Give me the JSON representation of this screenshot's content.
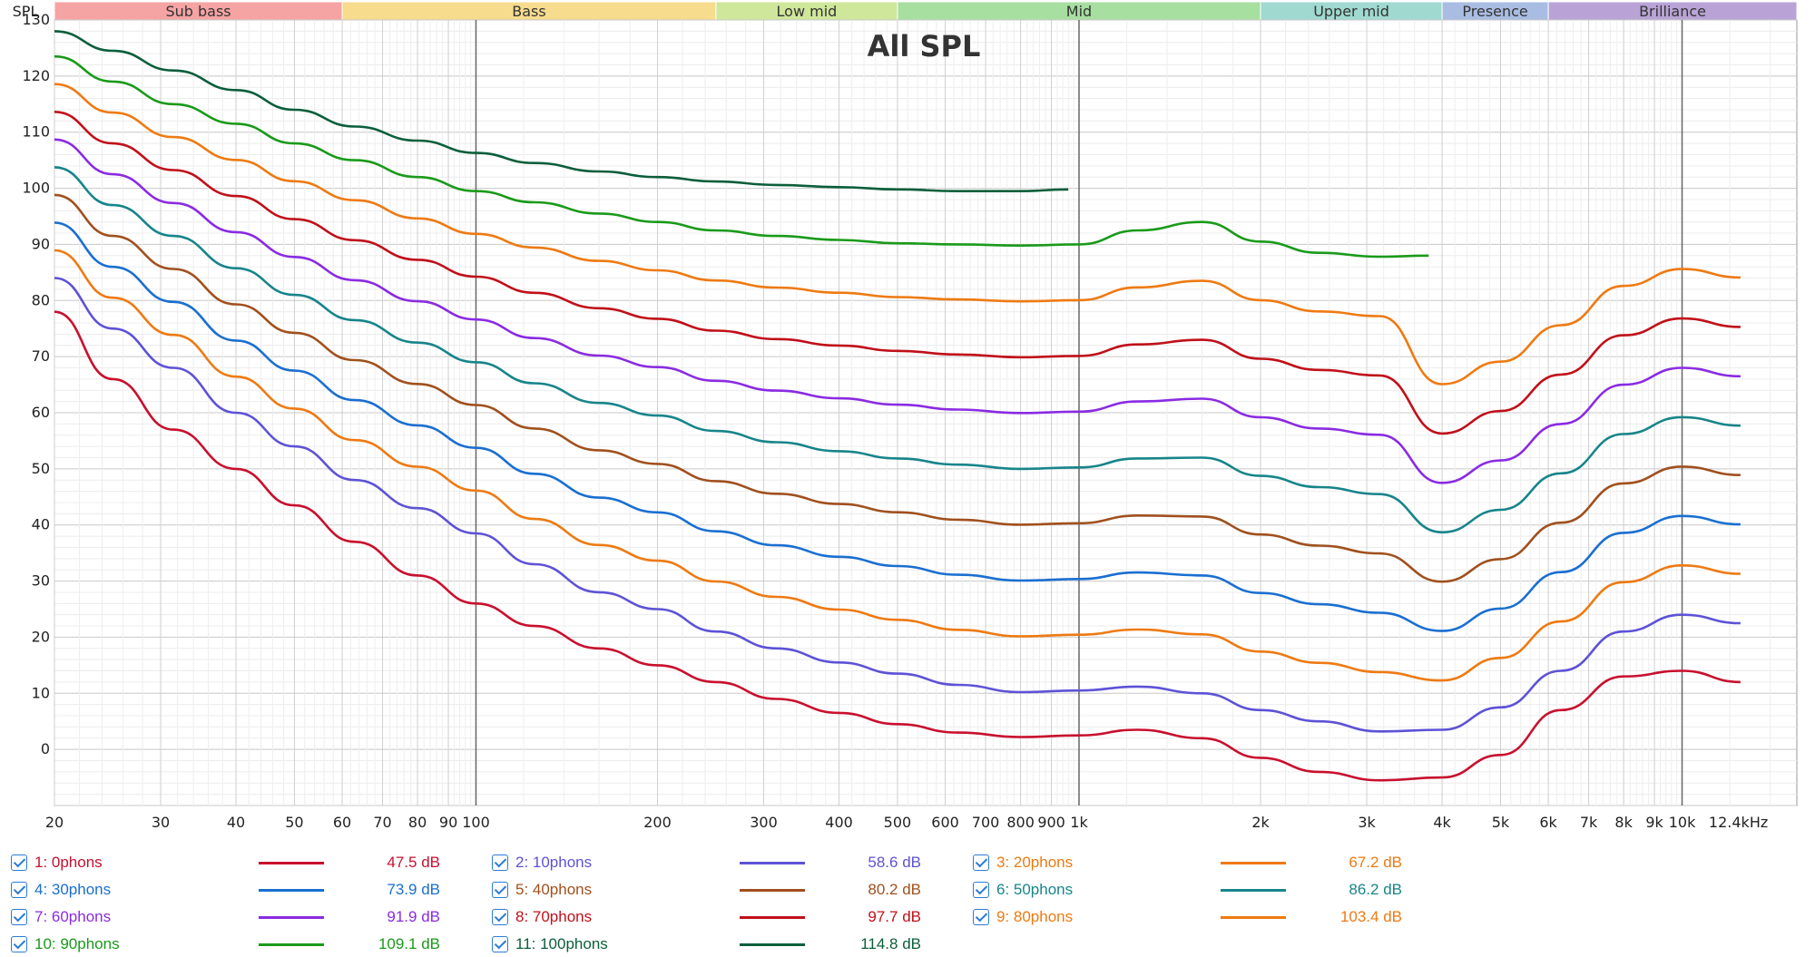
{
  "chart_data": {
    "type": "line",
    "title": "All SPL",
    "ylabel": "SPL",
    "xscale": "log",
    "xlim": [
      20,
      15500
    ],
    "ylim": [
      -10,
      130
    ],
    "grid": true,
    "legend_position": "bottom",
    "x_tick_labels": [
      {
        "f": 20,
        "label": "20"
      },
      {
        "f": 30,
        "label": "30"
      },
      {
        "f": 40,
        "label": "40"
      },
      {
        "f": 50,
        "label": "50"
      },
      {
        "f": 60,
        "label": "60"
      },
      {
        "f": 70,
        "label": "70"
      },
      {
        "f": 80,
        "label": "80"
      },
      {
        "f": 90,
        "label": "90"
      },
      {
        "f": 100,
        "label": "100"
      },
      {
        "f": 200,
        "label": "200"
      },
      {
        "f": 300,
        "label": "300"
      },
      {
        "f": 400,
        "label": "400"
      },
      {
        "f": 500,
        "label": "500"
      },
      {
        "f": 600,
        "label": "600"
      },
      {
        "f": 700,
        "label": "700"
      },
      {
        "f": 800,
        "label": "800"
      },
      {
        "f": 900,
        "label": "900"
      },
      {
        "f": 1000,
        "label": "1k"
      },
      {
        "f": 2000,
        "label": "2k"
      },
      {
        "f": 3000,
        "label": "3k"
      },
      {
        "f": 4000,
        "label": "4k"
      },
      {
        "f": 5000,
        "label": "5k"
      },
      {
        "f": 6000,
        "label": "6k"
      },
      {
        "f": 7000,
        "label": "7k"
      },
      {
        "f": 8000,
        "label": "8k"
      },
      {
        "f": 9000,
        "label": "9k"
      },
      {
        "f": 10000,
        "label": "10k"
      },
      {
        "f": 12400,
        "label": "12.4kHz"
      }
    ],
    "y_tick_labels": [
      "0",
      "10",
      "20",
      "30",
      "40",
      "50",
      "60",
      "70",
      "80",
      "90",
      "100",
      "110",
      "120",
      "130"
    ],
    "bands": [
      {
        "label": "Sub bass",
        "from": 20,
        "to": 60,
        "color": "#f5a3a3"
      },
      {
        "label": "Bass",
        "from": 60,
        "to": 250,
        "color": "#f7dc8e"
      },
      {
        "label": "Low mid",
        "from": 250,
        "to": 500,
        "color": "#cfe79a"
      },
      {
        "label": "Mid",
        "from": 500,
        "to": 2000,
        "color": "#a6df9f"
      },
      {
        "label": "Upper mid",
        "from": 2000,
        "to": 4000,
        "color": "#9fd9cf"
      },
      {
        "label": "Presence",
        "from": 4000,
        "to": 6000,
        "color": "#a9bde3"
      },
      {
        "label": "Brilliance",
        "from": 6000,
        "to": 15500,
        "color": "#b9a3d6"
      }
    ],
    "base_curve": {
      "x": [
        20,
        25,
        31.5,
        40,
        50,
        63,
        80,
        100,
        125,
        160,
        200,
        250,
        315,
        400,
        500,
        630,
        800,
        1000,
        1250,
        1600,
        2000,
        2500,
        3150,
        4000,
        5000,
        6300,
        8000,
        10000,
        12500
      ],
      "y": [
        78,
        66,
        57,
        50,
        43.5,
        37,
        31,
        26,
        22,
        18,
        15,
        12,
        9,
        6.5,
        4.5,
        3,
        2.2,
        2.5,
        3.5,
        2,
        -1.5,
        -4,
        -5.5,
        -5,
        -1,
        7,
        13,
        14,
        12
      ]
    },
    "offset_curves": [
      {
        "phons": 10,
        "x": [
          20,
          25,
          31.5,
          40,
          50,
          63,
          80,
          100,
          125,
          160,
          200,
          250,
          315,
          400,
          500,
          630,
          800,
          1000,
          1250,
          1600,
          2000,
          2500,
          3150,
          4000,
          5000,
          6300,
          8000,
          10000,
          12500
        ],
        "y": [
          84,
          75,
          68,
          60,
          54,
          48,
          43,
          38.5,
          33,
          28,
          25,
          21,
          18,
          15.5,
          13.5,
          11.5,
          10.2,
          10.5,
          11.2,
          10,
          7,
          5,
          3.2,
          3.5,
          7.5,
          14,
          21,
          24,
          22.5
        ]
      }
    ],
    "curves_from_90": {
      "x": [
        20,
        25,
        31.5,
        40,
        50,
        63,
        80,
        100,
        125,
        160,
        200,
        250,
        315,
        400,
        500,
        630,
        800,
        1000,
        1250,
        1600,
        2000,
        2500,
        3150,
        3800
      ],
      "y90": [
        123.5,
        119,
        115,
        111.5,
        108,
        105,
        102,
        99.5,
        97.5,
        95.5,
        94,
        92.5,
        91.5,
        90.8,
        90.2,
        90,
        89.8,
        90,
        92.5,
        94,
        90.5,
        88.5,
        87.8,
        88
      ],
      "x100": [
        20,
        25,
        31.5,
        40,
        50,
        63,
        80,
        100,
        125,
        160,
        200,
        250,
        315,
        400,
        500,
        630,
        800,
        960
      ],
      "y100": [
        128,
        124.5,
        121,
        117.5,
        114,
        111,
        108.5,
        106.3,
        104.5,
        103,
        102,
        101.2,
        100.6,
        100.2,
        99.8,
        99.5,
        99.5,
        99.8
      ]
    },
    "series": [
      {
        "name": "1: 0phons",
        "phons": 0,
        "color": "#c8102e",
        "value": "47.5 dB"
      },
      {
        "name": "2: 10phons",
        "phons": 10,
        "color": "#5e52d6",
        "value": "58.6 dB"
      },
      {
        "name": "3: 20phons",
        "phons": 20,
        "color": "#ee7a12",
        "value": "67.2 dB"
      },
      {
        "name": "4: 30phons",
        "phons": 30,
        "color": "#1a6fd1",
        "value": "73.9 dB"
      },
      {
        "name": "5: 40phons",
        "phons": 40,
        "color": "#a0501e",
        "value": "80.2 dB"
      },
      {
        "name": "6: 50phons",
        "phons": 50,
        "color": "#17858a",
        "value": "86.2 dB"
      },
      {
        "name": "7: 60phons",
        "phons": 60,
        "color": "#8a2be2",
        "value": "91.9 dB"
      },
      {
        "name": "8: 70phons",
        "phons": 70,
        "color": "#c0101a",
        "value": "97.7 dB"
      },
      {
        "name": "9: 80phons",
        "phons": 80,
        "color": "#ee7a12",
        "value": "103.4 dB"
      },
      {
        "name": "10: 90phons",
        "phons": 90,
        "color": "#1a9a1a",
        "value": "109.1 dB"
      },
      {
        "name": "11: 100phons",
        "phons": 100,
        "color": "#0b5e3b",
        "value": "114.8 dB"
      }
    ]
  }
}
